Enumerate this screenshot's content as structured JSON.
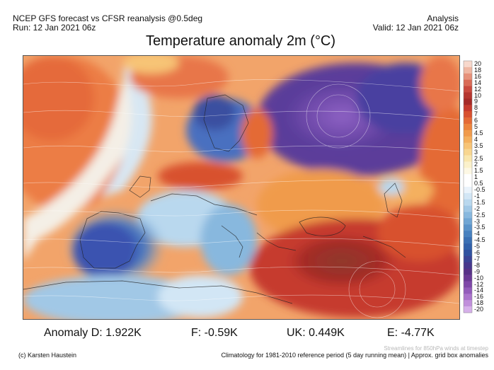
{
  "header": {
    "left_line1": "NCEP GFS forecast vs CFSR reanalysis @0.5deg",
    "left_line2": "Run: 12 Jan 2021 06z",
    "right_line1": "Analysis",
    "right_line2": "Valid: 12 Jan 2021 06z"
  },
  "title": "Temperature anomaly 2m (°C)",
  "colorbar": {
    "labels": [
      "20",
      "18",
      "16",
      "14",
      "12",
      "10",
      "9",
      "8",
      "7",
      "6",
      "5",
      "4.5",
      "4",
      "3.5",
      "3",
      "2.5",
      "2",
      "1.5",
      "1",
      "0.5",
      "-0.5",
      "-1",
      "-1.5",
      "-2",
      "-2.5",
      "-3",
      "-3.5",
      "-4",
      "-4.5",
      "-5",
      "-6",
      "-7",
      "-8",
      "-9",
      "-10",
      "-12",
      "-14",
      "-16",
      "-18",
      "-20"
    ],
    "colors": [
      "#f7d8cc",
      "#efb7a3",
      "#e6917a",
      "#d96b57",
      "#c94a3f",
      "#b5362f",
      "#a52a27",
      "#c63a2d",
      "#d8512f",
      "#e46a35",
      "#ec843d",
      "#f09b4c",
      "#f4b05e",
      "#f7c476",
      "#f8d690",
      "#f9e6ad",
      "#fbf1cb",
      "#fdf8e4",
      "#ffffff",
      "#ffffff",
      "#eaf3fb",
      "#d2e6f5",
      "#b9d8ee",
      "#a1c8e6",
      "#88b8de",
      "#70a6d4",
      "#5a93c9",
      "#4781bf",
      "#3a70b4",
      "#3161aa",
      "#2f52a0",
      "#3a4496",
      "#47388d",
      "#573287",
      "#6a3a95",
      "#7e48a8",
      "#935cbb",
      "#aa74cc",
      "#c08fdb",
      "#d6b0ea"
    ]
  },
  "stats": {
    "anomaly_d": "Anomaly D: 1.922K",
    "f": "F: -0.59K",
    "uk": "UK: 0.449K",
    "e": "E: -4.77K"
  },
  "footer": {
    "streamlines_note": "Streamlines for 850hPa winds at timestep",
    "credit": "(c) Karsten Haustein",
    "climatology": "Climatology for 1981-2010 reference period (5 day running mean) | Approx. grid box anomalies"
  }
}
